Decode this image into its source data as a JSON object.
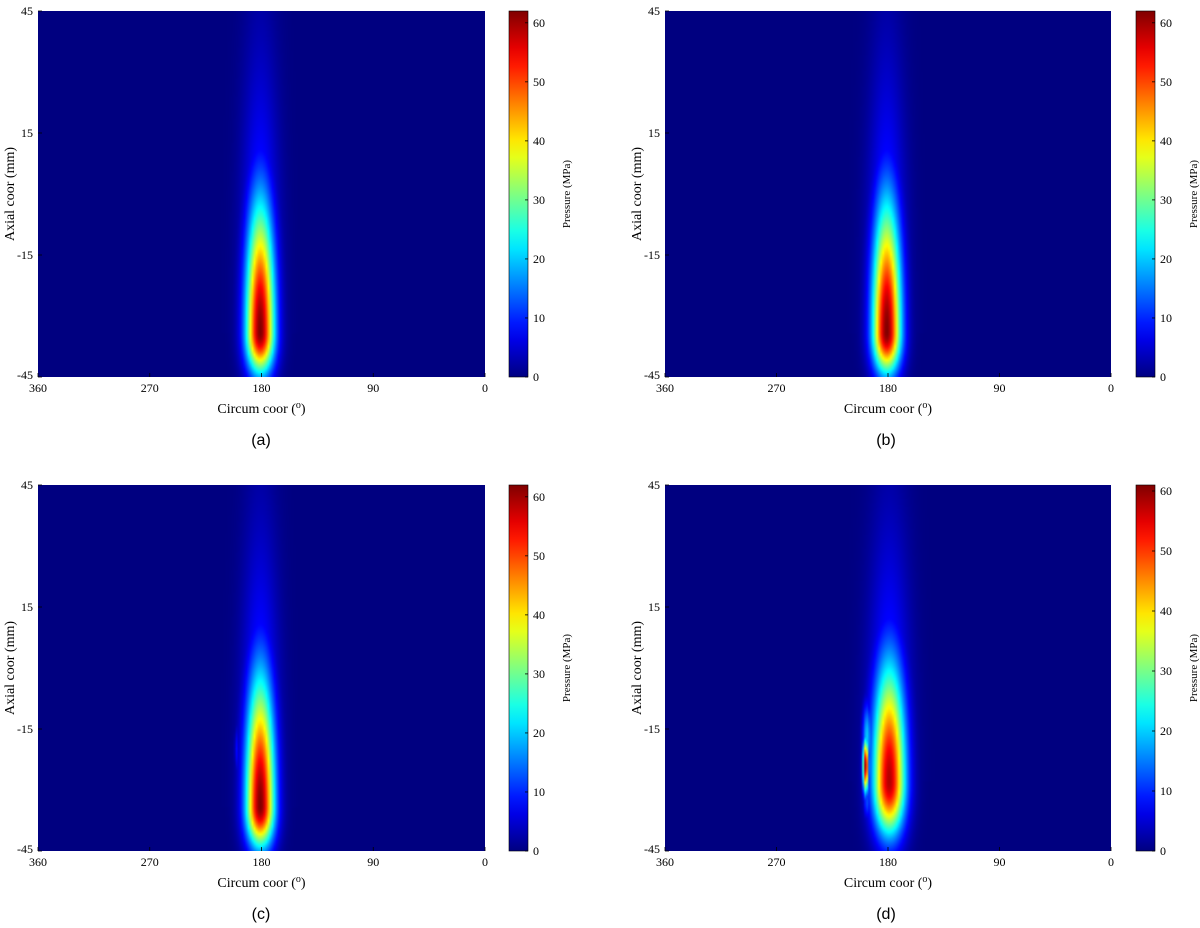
{
  "chart_data": [
    {
      "type": "heatmap",
      "caption": "(a)",
      "xlabel": "Circum coor (",
      "xlabel_sup": "o",
      "xlabel_end": ")",
      "ylabel": "Axial coor (mm)",
      "x_ticks": [
        360,
        270,
        180,
        90,
        0
      ],
      "y_ticks": [
        45,
        15,
        -15,
        -45
      ],
      "xlim": [
        360,
        0
      ],
      "ylim": [
        -45,
        45
      ],
      "colorbar": {
        "label": "Pressure (MPa)",
        "ticks": [
          0,
          10,
          20,
          30,
          40,
          50,
          60
        ],
        "range": [
          0,
          62
        ],
        "colormap": "jet"
      },
      "pressure_field": {
        "peaks": [
          {
            "x": 181,
            "y": -34,
            "value": 62,
            "spread_x": 8,
            "spread_y_low": 7,
            "spread_y_high": 22,
            "tail_spread_y": 42
          }
        ],
        "secondary_spots": []
      }
    },
    {
      "type": "heatmap",
      "caption": "(b)",
      "xlabel": "Circum coor (",
      "xlabel_sup": "o",
      "xlabel_end": ")",
      "ylabel": "Axial coor (mm)",
      "x_ticks": [
        360,
        270,
        180,
        90,
        0
      ],
      "y_ticks": [
        45,
        15,
        -15,
        -45
      ],
      "xlim": [
        360,
        0
      ],
      "ylim": [
        -45,
        45
      ],
      "colorbar": {
        "label": "Pressure (MPa)",
        "ticks": [
          0,
          10,
          20,
          30,
          40,
          50,
          60
        ],
        "range": [
          0,
          62
        ],
        "colormap": "jet"
      },
      "pressure_field": {
        "peaks": [
          {
            "x": 181,
            "y": -34,
            "value": 62,
            "spread_x": 8,
            "spread_y_low": 7,
            "spread_y_high": 22,
            "tail_spread_y": 42
          }
        ],
        "secondary_spots": [
          {
            "x": 196,
            "y": -28,
            "value": 3,
            "spread_x": 1,
            "spread_y": 4
          }
        ]
      }
    },
    {
      "type": "heatmap",
      "caption": "(c)",
      "xlabel": "Circum coor (",
      "xlabel_sup": "o",
      "xlabel_end": ")",
      "ylabel": "Axial coor (mm)",
      "x_ticks": [
        360,
        270,
        180,
        90,
        0
      ],
      "y_ticks": [
        45,
        15,
        -15,
        -45
      ],
      "xlim": [
        360,
        0
      ],
      "ylim": [
        -45,
        45
      ],
      "colorbar": {
        "label": "Pressure (MPa)",
        "ticks": [
          0,
          10,
          20,
          30,
          40,
          50,
          60
        ],
        "range": [
          0,
          62
        ],
        "colormap": "jet"
      },
      "pressure_field": {
        "peaks": [
          {
            "x": 181,
            "y": -34,
            "value": 62,
            "spread_x": 8,
            "spread_y_low": 7,
            "spread_y_high": 22,
            "tail_spread_y": 42
          }
        ],
        "secondary_spots": [
          {
            "x": 200,
            "y": -20,
            "value": 8,
            "spread_x": 1.2,
            "spread_y": 4
          }
        ]
      }
    },
    {
      "type": "heatmap",
      "caption": "(d)",
      "xlabel": "Circum coor (",
      "xlabel_sup": "o",
      "xlabel_end": ")",
      "ylabel": "Axial coor (mm)",
      "x_ticks": [
        360,
        270,
        180,
        90,
        0
      ],
      "y_ticks": [
        45,
        15,
        -15,
        -45
      ],
      "xlim": [
        360,
        0
      ],
      "ylim": [
        -45,
        45
      ],
      "colorbar": {
        "label": "Pressure (MPa)",
        "ticks": [
          0,
          10,
          20,
          30,
          40,
          50,
          60
        ],
        "range": [
          0,
          61
        ],
        "colormap": "jet"
      },
      "pressure_field": {
        "peaks": [
          {
            "x": 179,
            "y": -28,
            "value": 58,
            "spread_x": 9,
            "spread_y_low": 9,
            "spread_y_high": 20,
            "tail_spread_y": 40
          }
        ],
        "secondary_spots": [
          {
            "x": 198,
            "y": -24,
            "value": 61,
            "spread_x": 1.6,
            "spread_y": 4.5
          },
          {
            "x": 197,
            "y": -17,
            "value": 20,
            "spread_x": 2.5,
            "spread_y": 6
          },
          {
            "x": 197,
            "y": -33,
            "value": 12,
            "spread_x": 2,
            "spread_y": 3
          }
        ]
      }
    }
  ]
}
